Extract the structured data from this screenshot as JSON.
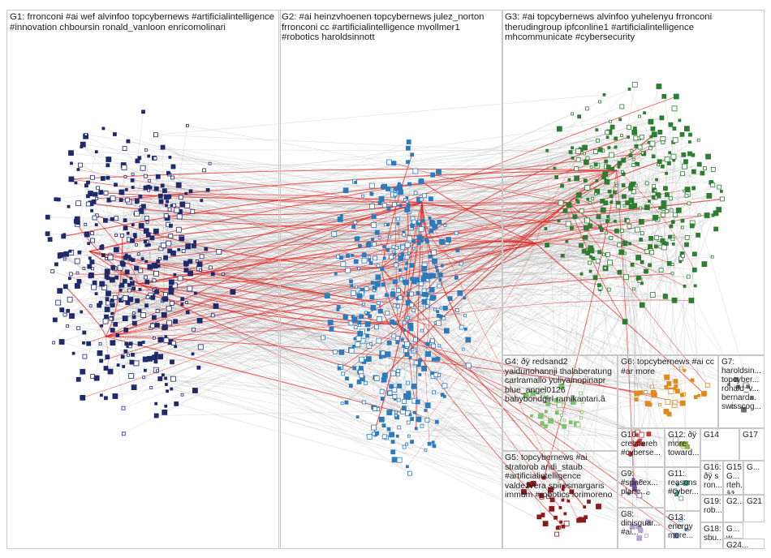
{
  "groups": [
    {
      "id": "G1",
      "label": "G1: frronconi #ai wef alvinfoo topcybernews #artificialintelligence #innovation chboursin ronald_vanloon enricomolinari",
      "color": "#1f2a6b"
    },
    {
      "id": "G2",
      "label": "G2: #ai heinzvhoenen topcybernews julez_norton frronconi cc #artificialintelligence mvollmer1 #robotics haroldsinnott",
      "color": "#2b7bbd"
    },
    {
      "id": "G3",
      "label": "G3: #ai topcybernews alvinfoo yuhelenyu frronconi therudingroup ipfconline1 #artificialintelligence mhcommunicate #cybersecurity",
      "color": "#2e7d32"
    },
    {
      "id": "G4",
      "label": "G4: ðÿ redsand2 yaidunohannji thalaberatung carlramallo yuliyainopinapr blue_angel0126 babybondgirl ramikantari.â",
      "color": "#7cc36b"
    },
    {
      "id": "G5",
      "label": "G5: topcybernews #ai stratorob andi_staub #artificialintelligence valdezvera spirosmargaris immbm #robotics lorimoreno",
      "color": "#8b1a1a"
    },
    {
      "id": "G6",
      "label": "G6: topcybernews #ai cc #ar more",
      "color": "#e08a1e"
    },
    {
      "id": "G7",
      "label": "G7: haroldsin... topcyber... ronald_v... bernard... swisscog...",
      "color": "#6a6a6a"
    },
    {
      "id": "G8",
      "label": "G8: dinisguar... #ai...",
      "color": "#b5a6c9"
    },
    {
      "id": "G9",
      "label": "G9: #spacex... plane...",
      "color": "#7a4f9a"
    },
    {
      "id": "G10",
      "label": "G10: crebbereh #cyberse...",
      "color": "#c83a3a"
    },
    {
      "id": "G11",
      "label": "G11: reasons #cyber...",
      "color": "#4a9a8a"
    },
    {
      "id": "G12",
      "label": "G12: ðÿ more toward...",
      "color": "#8fb04a"
    },
    {
      "id": "G13",
      "label": "G13: energy more...",
      "color": "#5a8ac0"
    },
    {
      "id": "G14",
      "label": "G14",
      "color": "#3a7a3a"
    },
    {
      "id": "G15",
      "label": "G15: G... rteh... âž... hon... ib...",
      "color": "#9a5a2a"
    },
    {
      "id": "G16",
      "label": "G16: ðÿ s ron...",
      "color": "#6a3a8a"
    },
    {
      "id": "G17",
      "label": "G17",
      "color": "#c04a4a"
    },
    {
      "id": "G18",
      "label": "G18: sbu...",
      "color": "#7a9aa0"
    },
    {
      "id": "G19",
      "label": "G19: rob...",
      "color": "#a06a9a"
    },
    {
      "id": "G20",
      "label": "G2...",
      "color": "#5a5a9a"
    },
    {
      "id": "G21",
      "label": "G21",
      "color": "#9a3a5a"
    },
    {
      "id": "G22",
      "label": "G...",
      "color": "#3a6a9a"
    },
    {
      "id": "G23",
      "label": "G... w...",
      "color": "#6a9a3a"
    },
    {
      "id": "G24",
      "label": "G24...",
      "color": "#8a8a3a"
    }
  ]
}
